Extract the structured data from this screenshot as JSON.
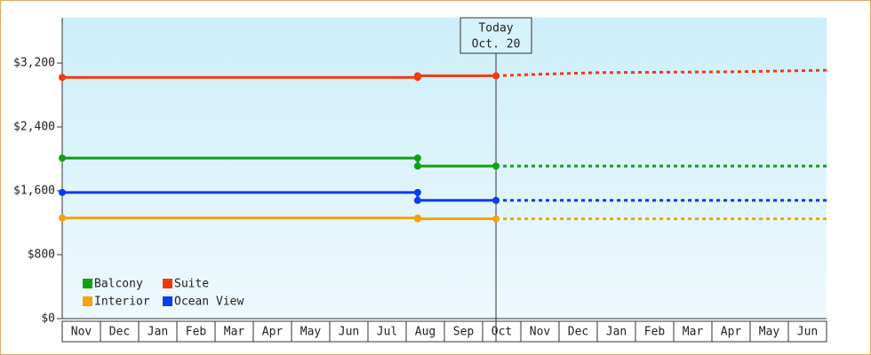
{
  "chart_data": {
    "type": "line",
    "months": [
      "Nov",
      "Dec",
      "Jan",
      "Feb",
      "Mar",
      "Apr",
      "May",
      "Jun",
      "Jul",
      "Aug",
      "Sep",
      "Oct",
      "Nov",
      "Dec",
      "Jan",
      "Feb",
      "Mar",
      "Apr",
      "May",
      "Jun"
    ],
    "xlim": [
      0,
      20
    ],
    "ylim": [
      0,
      3767
    ],
    "yticks": [
      {
        "value": 0,
        "label": "$0"
      },
      {
        "value": 800,
        "label": "$800"
      },
      {
        "value": 1600,
        "label": "$1,600"
      },
      {
        "value": 2400,
        "label": "$2,400"
      },
      {
        "value": 3200,
        "label": "$3,200"
      }
    ],
    "annotation": {
      "x": 11.35,
      "lines": [
        "Today",
        "Oct. 20"
      ]
    },
    "series": [
      {
        "name": "Balcony",
        "color": "#11a011",
        "x": [
          0,
          9.3,
          9.3,
          11.35
        ],
        "values": [
          2010,
          2010,
          1910,
          1910
        ],
        "forecast_x": [
          11.35,
          20
        ],
        "forecast": [
          1910,
          1910
        ]
      },
      {
        "name": "Suite",
        "color": "#f23a0c",
        "x": [
          0,
          9.3,
          9.3,
          11.35
        ],
        "values": [
          3020,
          3020,
          3040,
          3040
        ],
        "forecast_x": [
          11.35,
          12.5,
          14,
          17.5,
          20
        ],
        "forecast": [
          3040,
          3060,
          3080,
          3090,
          3110
        ]
      },
      {
        "name": "Interior",
        "color": "#f5a30a",
        "x": [
          0,
          9.3,
          9.3,
          11.35
        ],
        "values": [
          1260,
          1260,
          1250,
          1250
        ],
        "forecast_x": [
          11.35,
          20
        ],
        "forecast": [
          1250,
          1250
        ]
      },
      {
        "name": "Ocean View",
        "color": "#0a3cf0",
        "x": [
          0,
          9.3,
          9.3,
          11.35
        ],
        "values": [
          1580,
          1580,
          1480,
          1480
        ],
        "forecast_x": [
          11.35,
          20
        ],
        "forecast": [
          1480,
          1480
        ]
      }
    ]
  }
}
